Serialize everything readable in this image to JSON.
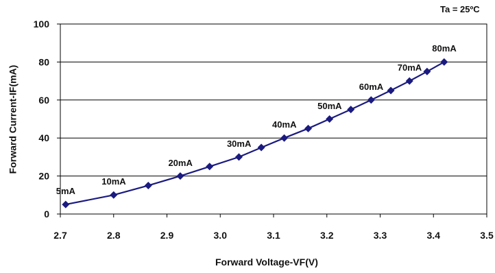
{
  "condition": "Ta = 25ºC",
  "chart_data": {
    "type": "line",
    "xlabel": "Forward Voltage-VF(V)",
    "ylabel": "Forward Current-IF(mA)",
    "xlim": [
      2.7,
      3.5
    ],
    "ylim": [
      0,
      100
    ],
    "xticks": [
      "2.7",
      "2.8",
      "2.9",
      "3.0",
      "3.1",
      "3.2",
      "3.3",
      "3.4",
      "3.5"
    ],
    "yticks": [
      "0",
      "20",
      "40",
      "60",
      "80",
      "100"
    ],
    "grid": "horizontal",
    "line_color": "#1a1a80",
    "series": [
      {
        "x": [
          2.71,
          2.8,
          2.865,
          2.925,
          2.98,
          3.035,
          3.077,
          3.12,
          3.165,
          3.205,
          3.245,
          3.283,
          3.32,
          3.355,
          3.388,
          3.42
        ],
        "y": [
          5,
          10,
          15,
          20,
          25,
          30,
          35,
          40,
          45,
          50,
          55,
          60,
          65,
          70,
          75,
          80
        ]
      }
    ],
    "annotations": [
      {
        "text": "5mA",
        "x": 2.71,
        "y": 5
      },
      {
        "text": "10mA",
        "x": 2.8,
        "y": 10
      },
      {
        "text": "20mA",
        "x": 2.925,
        "y": 20
      },
      {
        "text": "30mA",
        "x": 3.035,
        "y": 30
      },
      {
        "text": "40mA",
        "x": 3.12,
        "y": 40
      },
      {
        "text": "50mA",
        "x": 3.205,
        "y": 50
      },
      {
        "text": "60mA",
        "x": 3.283,
        "y": 60
      },
      {
        "text": "70mA",
        "x": 3.355,
        "y": 70
      },
      {
        "text": "80mA",
        "x": 3.42,
        "y": 80
      }
    ]
  }
}
